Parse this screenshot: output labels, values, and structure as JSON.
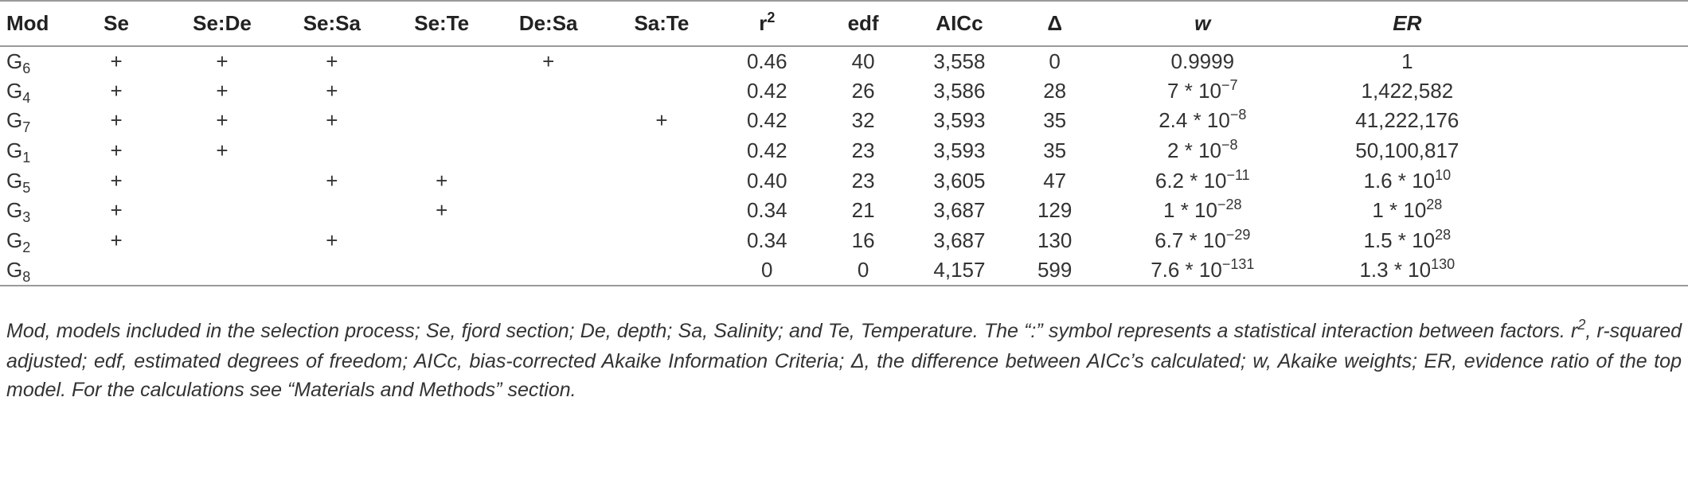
{
  "table": {
    "headers": [
      "Mod",
      "Se",
      "Se:De",
      "Se:Sa",
      "Se:Te",
      "De:Sa",
      "Sa:Te",
      "r",
      "edf",
      "AICc",
      "Δ",
      "w",
      "ER"
    ],
    "header_r_sup": "2",
    "rows": [
      {
        "mod": "G",
        "sub": "6",
        "se": "+",
        "se_de": "+",
        "se_sa": "+",
        "se_te": "",
        "de_sa": "+",
        "sa_te": "",
        "r2": "0.46",
        "edf": "40",
        "aicc": "3,558",
        "delta": "0",
        "w": "0.9999",
        "w_exp": "",
        "er": "1",
        "er_exp": ""
      },
      {
        "mod": "G",
        "sub": "4",
        "se": "+",
        "se_de": "+",
        "se_sa": "+",
        "se_te": "",
        "de_sa": "",
        "sa_te": "",
        "r2": "0.42",
        "edf": "26",
        "aicc": "3,586",
        "delta": "28",
        "w": "7 * 10",
        "w_exp": "−7",
        "er": "1,422,582",
        "er_exp": ""
      },
      {
        "mod": "G",
        "sub": "7",
        "se": "+",
        "se_de": "+",
        "se_sa": "+",
        "se_te": "",
        "de_sa": "",
        "sa_te": "+",
        "r2": "0.42",
        "edf": "32",
        "aicc": "3,593",
        "delta": "35",
        "w": "2.4 * 10",
        "w_exp": "−8",
        "er": "41,222,176",
        "er_exp": ""
      },
      {
        "mod": "G",
        "sub": "1",
        "se": "+",
        "se_de": "+",
        "se_sa": "",
        "se_te": "",
        "de_sa": "",
        "sa_te": "",
        "r2": "0.42",
        "edf": "23",
        "aicc": "3,593",
        "delta": "35",
        "w": "2 * 10",
        "w_exp": "−8",
        "er": "50,100,817",
        "er_exp": ""
      },
      {
        "mod": "G",
        "sub": "5",
        "se": "+",
        "se_de": "",
        "se_sa": "+",
        "se_te": "+",
        "de_sa": "",
        "sa_te": "",
        "r2": "0.40",
        "edf": "23",
        "aicc": "3,605",
        "delta": "47",
        "w": "6.2 * 10",
        "w_exp": "−11",
        "er": "1.6 * 10",
        "er_exp": "10"
      },
      {
        "mod": "G",
        "sub": "3",
        "se": "+",
        "se_de": "",
        "se_sa": "",
        "se_te": "+",
        "de_sa": "",
        "sa_te": "",
        "r2": "0.34",
        "edf": "21",
        "aicc": "3,687",
        "delta": "129",
        "w": "1 * 10",
        "w_exp": "−28",
        "er": "1 * 10",
        "er_exp": "28"
      },
      {
        "mod": "G",
        "sub": "2",
        "se": "+",
        "se_de": "",
        "se_sa": "+",
        "se_te": "",
        "de_sa": "",
        "sa_te": "",
        "r2": "0.34",
        "edf": "16",
        "aicc": "3,687",
        "delta": "130",
        "w": "6.7 * 10",
        "w_exp": "−29",
        "er": "1.5 * 10",
        "er_exp": "28"
      },
      {
        "mod": "G",
        "sub": "8",
        "se": "",
        "se_de": "",
        "se_sa": "",
        "se_te": "",
        "de_sa": "",
        "sa_te": "",
        "r2": "0",
        "edf": "0",
        "aicc": "4,157",
        "delta": "599",
        "w": "7.6 * 10",
        "w_exp": "−131",
        "er": "1.3 * 10",
        "er_exp": "130"
      }
    ]
  },
  "footnote": {
    "p1": "Mod, models included in the selection process; Se, fjord section; De, depth; Sa, Salinity; and Te, Temperature. The “:” symbol represents a statistical interaction between factors. r",
    "p1_sup": "2",
    "p2": ", r-squared adjusted; edf, estimated degrees of freedom; AICc, bias-corrected Akaike Information Criteria; Δ, the difference between AICc’s calculated; w, Akaike weights; ER, evidence ratio of the top model. For the calculations see “Materials and Methods” section."
  }
}
